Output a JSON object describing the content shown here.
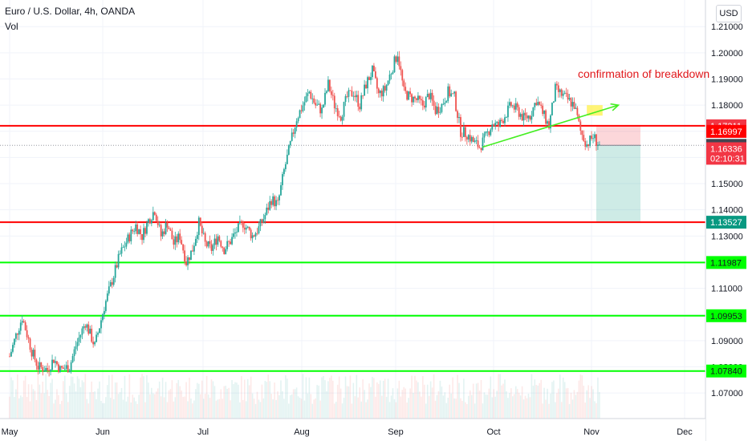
{
  "header": {
    "symbol": "Euro / U.S. Dollar",
    "interval": "4h",
    "exchange": "OANDA",
    "indicator": "Vol",
    "currency_button": "USD"
  },
  "annotation": "confirmation of breakdown",
  "chart_data": {
    "type": "candlestick",
    "ylim": [
      1.063,
      1.2165
    ],
    "y_ticks": [
      "1.21000",
      "1.20000",
      "1.19000",
      "1.18000",
      "1.17000",
      "1.16000",
      "1.15000",
      "1.14000",
      "1.13000",
      "1.12000",
      "1.11000",
      "1.10000",
      "1.09000",
      "1.08000",
      "1.07000"
    ],
    "x_ticks": [
      "May",
      "Jun",
      "Jul",
      "Aug",
      "Sep",
      "Oct",
      "Nov",
      "Dec"
    ],
    "price_path": [
      [
        "May 1",
        1.084
      ],
      [
        "May 3",
        1.092
      ],
      [
        "May 5",
        1.099
      ],
      [
        "May 8",
        1.086
      ],
      [
        "May 10",
        1.08
      ],
      [
        "May 13",
        1.079
      ],
      [
        "May 15",
        1.083
      ],
      [
        "May 17",
        1.079
      ],
      [
        "May 20",
        1.08
      ],
      [
        "May 22",
        1.088
      ],
      [
        "May 25",
        1.097
      ],
      [
        "May 28",
        1.088
      ],
      [
        "May 31",
        1.103
      ],
      [
        "Jun 3",
        1.115
      ],
      [
        "Jun 5",
        1.123
      ],
      [
        "Jun 8",
        1.13
      ],
      [
        "Jun 10",
        1.134
      ],
      [
        "Jun 12",
        1.13
      ],
      [
        "Jun 14",
        1.136
      ],
      [
        "Jun 16",
        1.14
      ],
      [
        "Jun 18",
        1.13
      ],
      [
        "Jun 20",
        1.135
      ],
      [
        "Jun 22",
        1.127
      ],
      [
        "Jun 24",
        1.13
      ],
      [
        "Jun 26",
        1.12
      ],
      [
        "Jun 28",
        1.125
      ],
      [
        "Jun 30",
        1.135
      ],
      [
        "Jul 2",
        1.127
      ],
      [
        "Jul 4",
        1.125
      ],
      [
        "Jul 6",
        1.13
      ],
      [
        "Jul 8",
        1.125
      ],
      [
        "Jul 10",
        1.128
      ],
      [
        "Jul 12",
        1.132
      ],
      [
        "Jul 14",
        1.135
      ],
      [
        "Jul 17",
        1.13
      ],
      [
        "Jul 19",
        1.133
      ],
      [
        "Jul 21",
        1.138
      ],
      [
        "Jul 23",
        1.144
      ],
      [
        "Jul 25",
        1.142
      ],
      [
        "Jul 27",
        1.155
      ],
      [
        "Jul 29",
        1.165
      ],
      [
        "Jul 31",
        1.175
      ],
      [
        "Aug 2",
        1.18
      ],
      [
        "Aug 4",
        1.185
      ],
      [
        "Aug 6",
        1.18
      ],
      [
        "Aug 8",
        1.178
      ],
      [
        "Aug 10",
        1.188
      ],
      [
        "Aug 12",
        1.18
      ],
      [
        "Aug 14",
        1.176
      ],
      [
        "Aug 16",
        1.183
      ],
      [
        "Aug 18",
        1.185
      ],
      [
        "Aug 20",
        1.18
      ],
      [
        "Aug 22",
        1.188
      ],
      [
        "Aug 24",
        1.193
      ],
      [
        "Aug 26",
        1.184
      ],
      [
        "Aug 28",
        1.186
      ],
      [
        "Aug 30",
        1.193
      ],
      [
        "Sep 1",
        1.2
      ],
      [
        "Sep 3",
        1.185
      ],
      [
        "Sep 5",
        1.183
      ],
      [
        "Sep 7",
        1.182
      ],
      [
        "Sep 9",
        1.18
      ],
      [
        "Sep 11",
        1.184
      ],
      [
        "Sep 13",
        1.178
      ],
      [
        "Sep 15",
        1.18
      ],
      [
        "Sep 17",
        1.185
      ],
      [
        "Sep 19",
        1.183
      ],
      [
        "Sep 21",
        1.17
      ],
      [
        "Sep 23",
        1.169
      ],
      [
        "Sep 25",
        1.166
      ],
      [
        "Sep 27",
        1.164
      ],
      [
        "Sep 29",
        1.168
      ],
      [
        "Oct 1",
        1.173
      ],
      [
        "Oct 3",
        1.172
      ],
      [
        "Oct 5",
        1.176
      ],
      [
        "Oct 7",
        1.18
      ],
      [
        "Oct 9",
        1.178
      ],
      [
        "Oct 11",
        1.175
      ],
      [
        "Oct 13",
        1.176
      ],
      [
        "Oct 15",
        1.182
      ],
      [
        "Oct 17",
        1.177
      ],
      [
        "Oct 19",
        1.172
      ],
      [
        "Oct 21",
        1.186
      ],
      [
        "Oct 23",
        1.184
      ],
      [
        "Oct 25",
        1.182
      ],
      [
        "Oct 27",
        1.18
      ],
      [
        "Oct 29",
        1.17
      ],
      [
        "Oct 31",
        1.165
      ],
      [
        "Nov 2",
        1.168
      ],
      [
        "Nov 4",
        1.1646
      ]
    ],
    "horizontal_levels": [
      {
        "value": 1.17211,
        "color": "#ff0000"
      },
      {
        "value": 1.13527,
        "color": "#ff0000"
      },
      {
        "value": 1.11987,
        "color": "#00ff00"
      },
      {
        "value": 1.09953,
        "color": "#00ff00"
      },
      {
        "value": 1.0784,
        "color": "#00ff00"
      }
    ],
    "trendline": {
      "from": [
        "Sep 28",
        1.164
      ],
      "to": [
        "Nov 10",
        1.18
      ],
      "color": "#44ee22"
    },
    "highlight_box": {
      "from": [
        "Oct 31",
        1.18
      ],
      "to": [
        "Nov 5",
        1.176
      ],
      "color": "#ffff66"
    },
    "position": {
      "entry": 1.16463,
      "stop": 1.17211,
      "target": 1.13527,
      "start": "Nov 3",
      "end": "Nov 17"
    },
    "price_labels": [
      {
        "text": "1.17211",
        "value": 1.17211,
        "bg": "#f23645",
        "fg": "#ffffff"
      },
      {
        "text": "1.16997",
        "value": 1.16997,
        "bg": "#ff0000",
        "fg": "#ffffff"
      },
      {
        "text": "1.16463",
        "value": 1.16463,
        "bg": "#434651",
        "fg": "#ffffff"
      },
      {
        "text": "1.16336",
        "value": 1.16336,
        "bg": "#f23645",
        "fg": "#ffffff"
      },
      {
        "text": "02:10:31",
        "value": 1.1597,
        "bg": "#f23645",
        "fg": "#ffffff"
      },
      {
        "text": "1.13527",
        "value": 1.13527,
        "bg": "#089981",
        "fg": "#ffffff"
      },
      {
        "text": "1.11987",
        "value": 1.11987,
        "bg": "#00ff00",
        "fg": "#131722"
      },
      {
        "text": "1.09953",
        "value": 1.09953,
        "bg": "#00ff00",
        "fg": "#131722"
      },
      {
        "text": "1.07840",
        "value": 1.0784,
        "bg": "#00ff00",
        "fg": "#131722"
      }
    ],
    "colors": {
      "up": "#26a69a",
      "down": "#ef5350",
      "grid": "#f0f3fa",
      "text": "#131722"
    }
  }
}
